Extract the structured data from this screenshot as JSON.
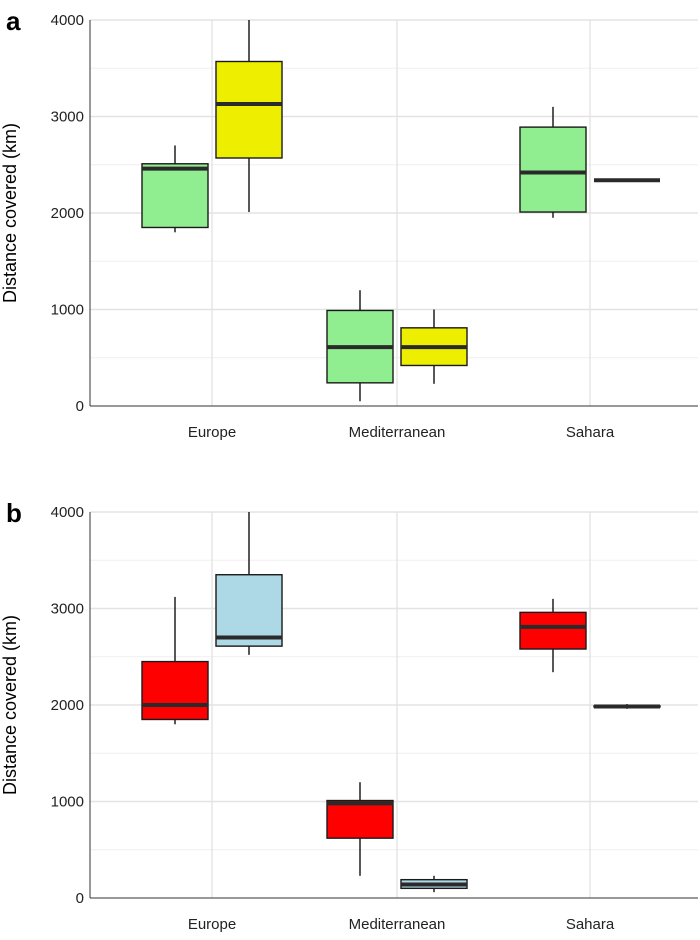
{
  "chart_data": [
    {
      "type": "boxplot",
      "panel_label": "a",
      "ylabel": "Distance covered (km)",
      "ylim": [
        0,
        4000
      ],
      "yticks": [
        0,
        1000,
        2000,
        3000,
        4000
      ],
      "categories": [
        "Europe",
        "Mediterranean",
        "Sahara"
      ],
      "grid": true,
      "boxes": [
        {
          "category": "Europe",
          "group": 0,
          "color": "#90EE90",
          "min": 1800,
          "q1": 1850,
          "median": 2460,
          "q3": 2510,
          "max": 2700
        },
        {
          "category": "Europe",
          "group": 1,
          "color": "#EEEE00",
          "min": 2010,
          "q1": 2570,
          "median": 3130,
          "q3": 3570,
          "max": 4000
        },
        {
          "category": "Mediterranean",
          "group": 0,
          "color": "#90EE90",
          "min": 50,
          "q1": 240,
          "median": 610,
          "q3": 990,
          "max": 1200
        },
        {
          "category": "Mediterranean",
          "group": 1,
          "color": "#EEEE00",
          "min": 230,
          "q1": 420,
          "median": 610,
          "q3": 810,
          "max": 1000
        },
        {
          "category": "Sahara",
          "group": 0,
          "color": "#90EE90",
          "min": 1950,
          "q1": 2010,
          "median": 2420,
          "q3": 2890,
          "max": 3100
        },
        {
          "category": "Sahara",
          "group": 1,
          "color": "#333333",
          "min": 2340,
          "q1": 2340,
          "median": 2340,
          "q3": 2340,
          "max": 2340
        }
      ]
    },
    {
      "type": "boxplot",
      "panel_label": "b",
      "ylabel": "Distance covered (km)",
      "ylim": [
        0,
        4000
      ],
      "yticks": [
        0,
        1000,
        2000,
        3000,
        4000
      ],
      "categories": [
        "Europe",
        "Mediterranean",
        "Sahara"
      ],
      "grid": true,
      "boxes": [
        {
          "category": "Europe",
          "group": 0,
          "color": "#FF0000",
          "min": 1800,
          "q1": 1850,
          "median": 2000,
          "q3": 2450,
          "max": 3120
        },
        {
          "category": "Europe",
          "group": 1,
          "color": "#ADD8E6",
          "min": 2520,
          "q1": 2610,
          "median": 2700,
          "q3": 3350,
          "max": 4000
        },
        {
          "category": "Mediterranean",
          "group": 0,
          "color": "#FF0000",
          "min": 230,
          "q1": 620,
          "median": 980,
          "q3": 1010,
          "max": 1200
        },
        {
          "category": "Mediterranean",
          "group": 1,
          "color": "#ADD8E6",
          "min": 60,
          "q1": 100,
          "median": 140,
          "q3": 190,
          "max": 230
        },
        {
          "category": "Sahara",
          "group": 0,
          "color": "#FF0000",
          "min": 2340,
          "q1": 2580,
          "median": 2810,
          "q3": 2960,
          "max": 3100
        },
        {
          "category": "Sahara",
          "group": 1,
          "color": "#333333",
          "min": 1960,
          "q1": 1980,
          "median": 1985,
          "q3": 1990,
          "max": 2010
        }
      ]
    }
  ]
}
